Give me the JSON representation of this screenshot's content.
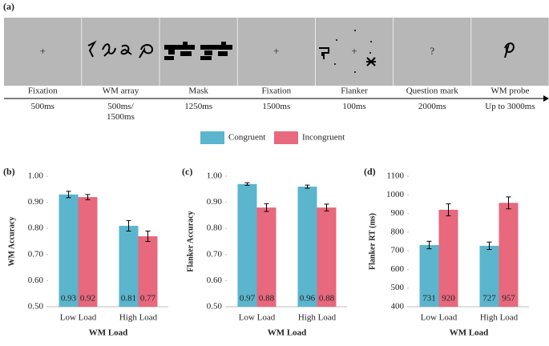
{
  "panel_a": {
    "label": "(a)",
    "frames": [
      {
        "name": "Fixation",
        "duration": "500ms",
        "stimulus": "+"
      },
      {
        "name": "WM array",
        "duration": "500ms/\n1500ms"
      },
      {
        "name": "Mask",
        "duration": "1250ms"
      },
      {
        "name": "Fixation",
        "duration": "1500ms",
        "stimulus": "+"
      },
      {
        "name": "Flanker",
        "duration": "100ms",
        "stimulus": "+"
      },
      {
        "name": "Question mark",
        "duration": "2000ms",
        "stimulus": "?"
      },
      {
        "name": "WM probe",
        "duration": "Up to 3000ms"
      }
    ]
  },
  "chart_data": [
    {
      "type": "bar",
      "panel_label": "(b)",
      "xlabel": "WM Load",
      "ylabel": "WM Accuracy",
      "categories": [
        "Low Load",
        "High Load"
      ],
      "series": [
        {
          "name": "Congruent",
          "color": "#5bb5cd",
          "values": [
            0.93,
            0.81
          ],
          "errors": [
            0.012,
            0.02
          ]
        },
        {
          "name": "Incongruent",
          "color": "#e8687d",
          "values": [
            0.92,
            0.77
          ],
          "errors": [
            0.01,
            0.02
          ]
        }
      ],
      "ylim": [
        0.5,
        1.0
      ],
      "yticks": [
        {
          "value": 0.5,
          "label": "0.50"
        },
        {
          "value": 0.6,
          "label": "0.60"
        },
        {
          "value": 0.7,
          "label": "0.70"
        },
        {
          "value": 0.8,
          "label": "0.80"
        },
        {
          "value": 0.9,
          "label": "0.90"
        },
        {
          "value": 1.0,
          "label": "1.00"
        }
      ]
    },
    {
      "type": "bar",
      "panel_label": "(c)",
      "xlabel": "WM Load",
      "ylabel": "Flanker Accuracy",
      "categories": [
        "Low Load",
        "High Load"
      ],
      "series": [
        {
          "name": "Congruent",
          "color": "#5bb5cd",
          "values": [
            0.97,
            0.96
          ],
          "errors": [
            0.005,
            0.006
          ]
        },
        {
          "name": "Incongruent",
          "color": "#e8687d",
          "values": [
            0.88,
            0.88
          ],
          "errors": [
            0.015,
            0.013
          ]
        }
      ],
      "ylim": [
        0.5,
        1.0
      ],
      "yticks": [
        {
          "value": 0.5,
          "label": "0.50"
        },
        {
          "value": 0.6,
          "label": "0.60"
        },
        {
          "value": 0.7,
          "label": "0.70"
        },
        {
          "value": 0.8,
          "label": "0.80"
        },
        {
          "value": 0.9,
          "label": "0.90"
        },
        {
          "value": 1.0,
          "label": "1.00"
        }
      ]
    },
    {
      "type": "bar",
      "panel_label": "(d)",
      "xlabel": "WM Load",
      "ylabel": "Flanker RT (ms)",
      "categories": [
        "Low Load",
        "High Load"
      ],
      "series": [
        {
          "name": "Congruent",
          "color": "#5bb5cd",
          "values": [
            731,
            727
          ],
          "errors": [
            20,
            20
          ]
        },
        {
          "name": "Incongruent",
          "color": "#e8687d",
          "values": [
            920,
            957
          ],
          "errors": [
            32,
            32
          ]
        }
      ],
      "ylim": [
        400,
        1100
      ],
      "yticks": [
        400,
        500,
        600,
        700,
        800,
        900,
        1000,
        1100
      ]
    }
  ]
}
